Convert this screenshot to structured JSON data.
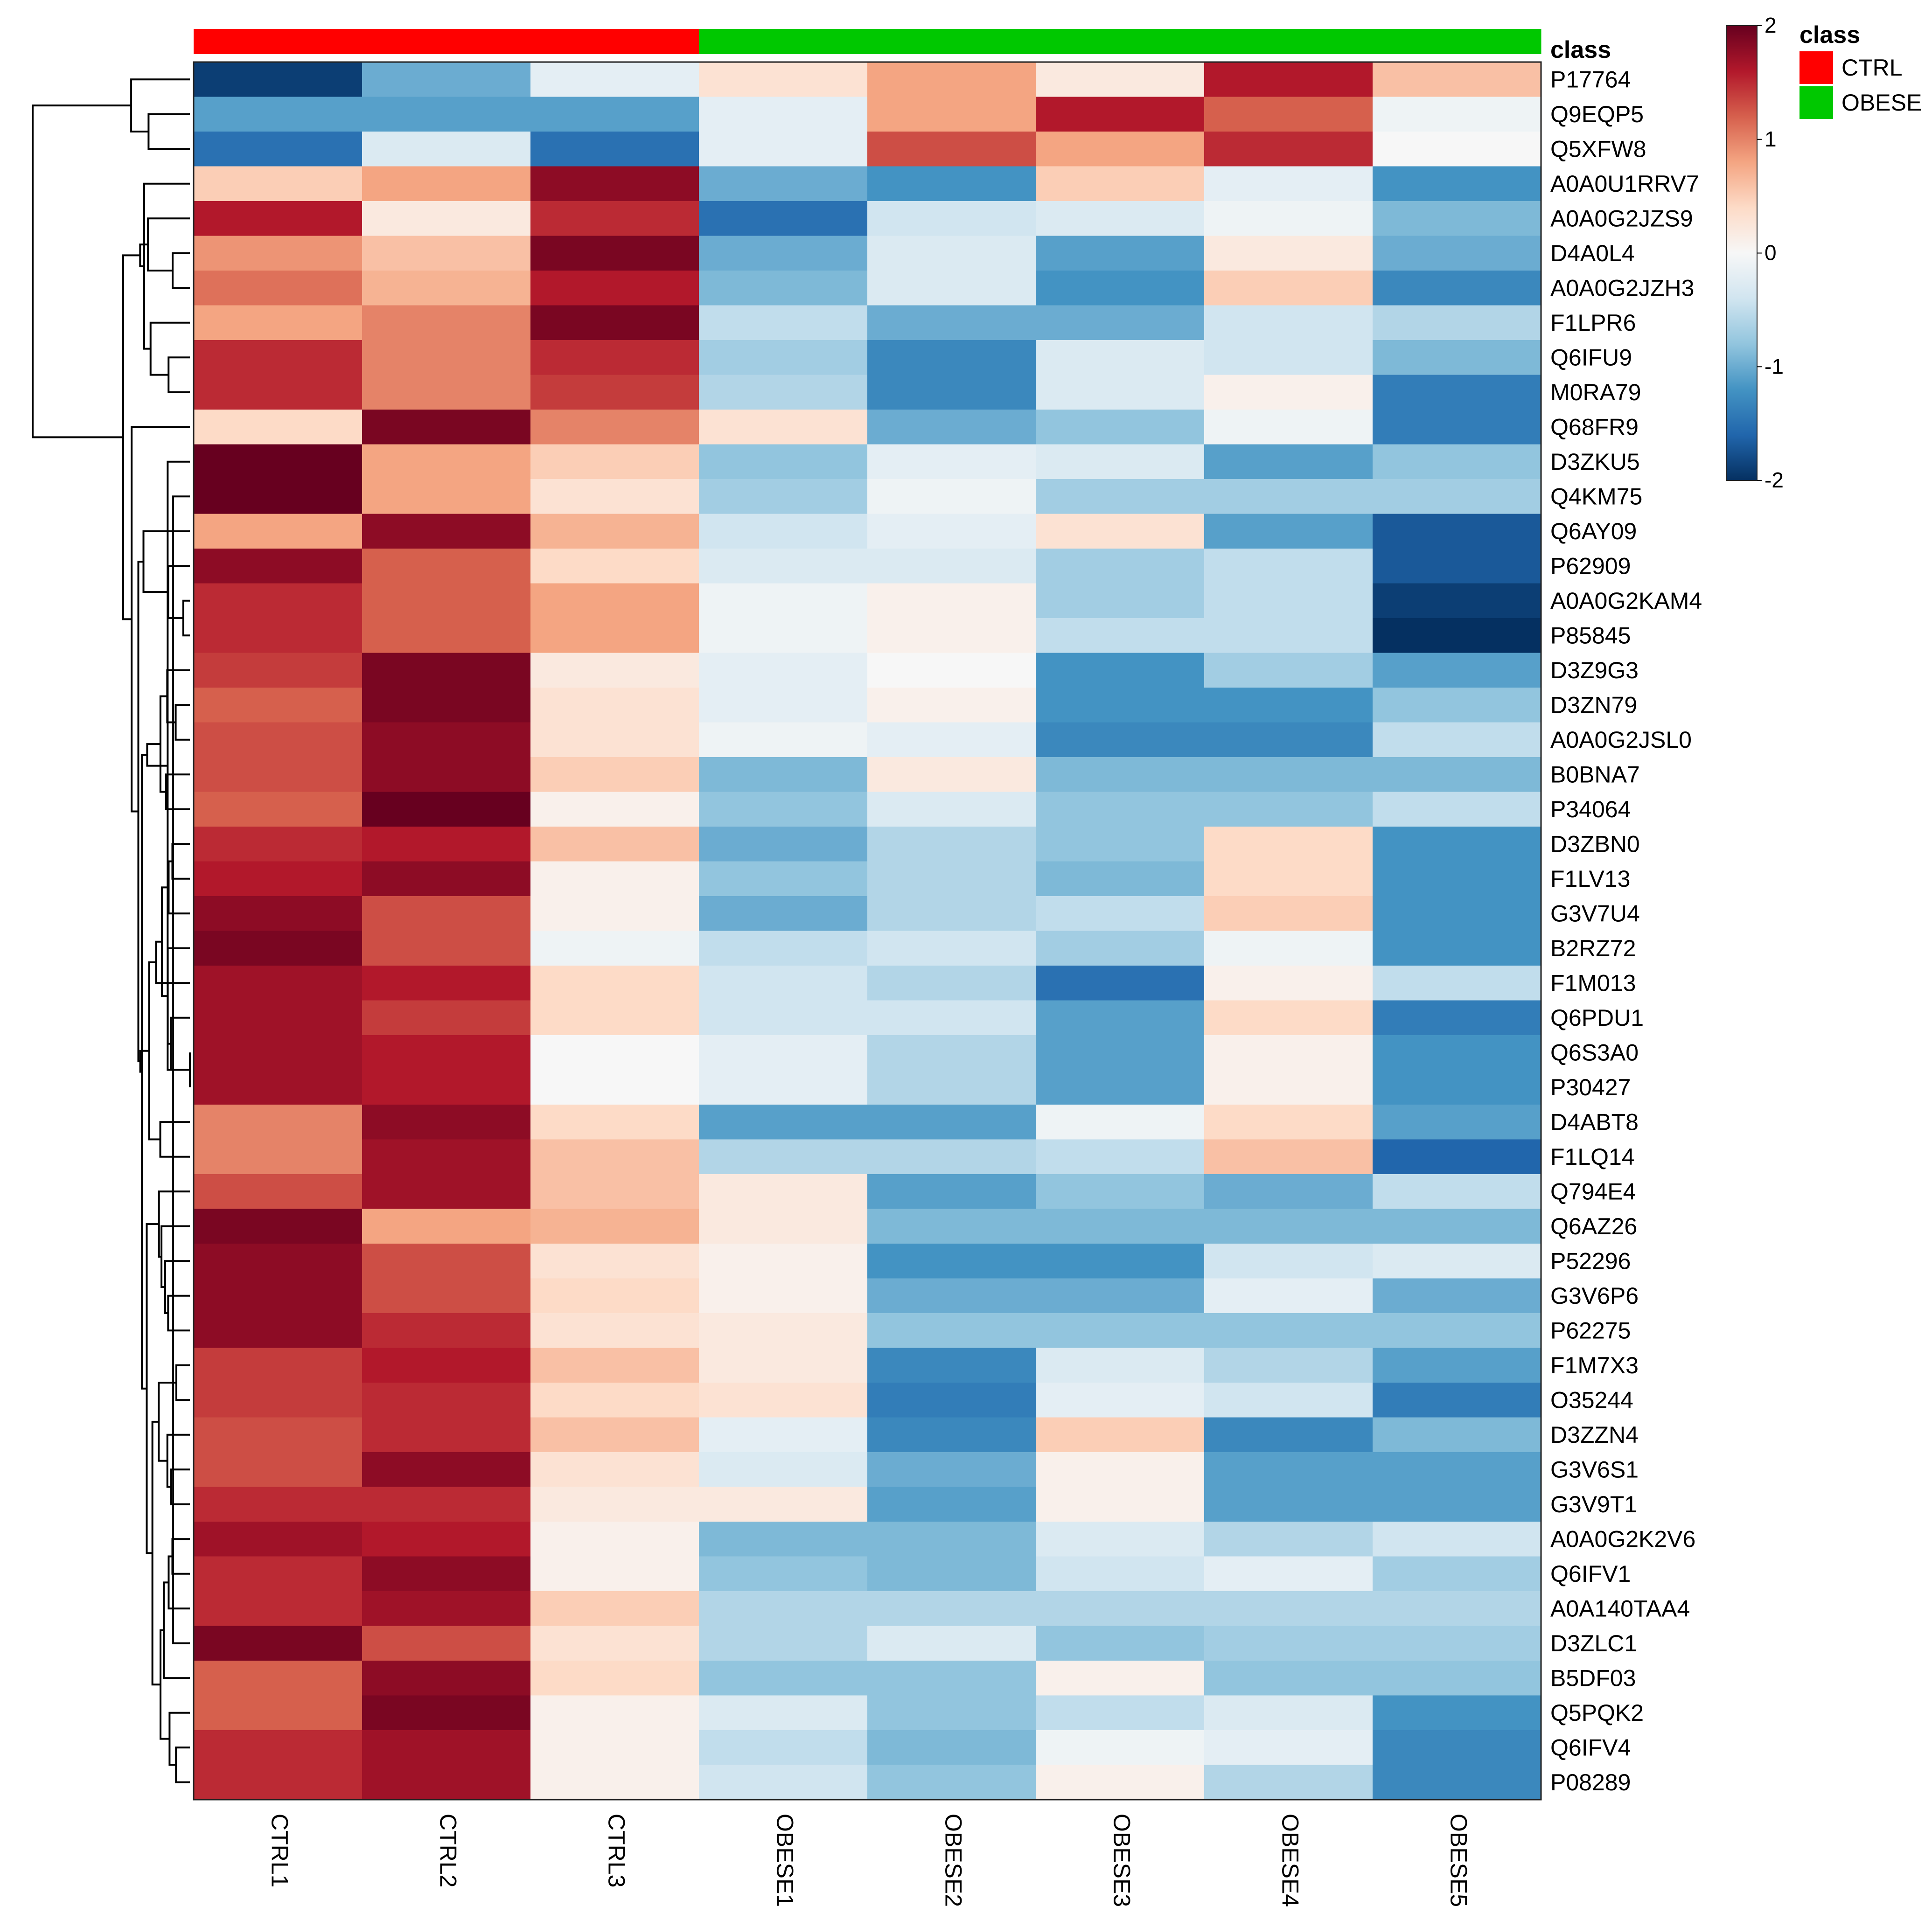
{
  "chart_data": {
    "type": "heatmap",
    "title": "",
    "columns": [
      "CTRL1",
      "CTRL2",
      "CTRL3",
      "OBESE1",
      "OBESE2",
      "OBESE3",
      "OBESE4",
      "OBESE5"
    ],
    "column_classes": [
      "CTRL",
      "CTRL",
      "CTRL",
      "OBESE",
      "OBESE",
      "OBESE",
      "OBESE",
      "OBESE"
    ],
    "annotation_label": "class",
    "legend": {
      "title": "class",
      "entries": [
        {
          "label": "CTRL",
          "color": "#ff0000"
        },
        {
          "label": "OBESE",
          "color": "#00c800"
        }
      ]
    },
    "color_scale": {
      "min": -2,
      "max": 2,
      "ticks": [
        "2",
        "1",
        "0",
        "-1",
        "-2"
      ],
      "stops": [
        "#053061",
        "#2166ac",
        "#4393c3",
        "#92c5de",
        "#d1e5f0",
        "#f7f7f7",
        "#fddbc7",
        "#f4a582",
        "#d6604d",
        "#b2182b",
        "#67001f"
      ]
    },
    "rows": [
      {
        "name": "P17764",
        "values": [
          -1.9,
          -1.0,
          -0.2,
          0.3,
          0.8,
          0.2,
          1.6,
          0.6
        ]
      },
      {
        "name": "Q9EQP5",
        "values": [
          -1.1,
          -1.1,
          -1.1,
          -0.2,
          0.8,
          1.6,
          1.2,
          -0.1
        ]
      },
      {
        "name": "Q5XFW8",
        "values": [
          -1.5,
          -0.3,
          -1.5,
          -0.2,
          1.3,
          0.8,
          1.5,
          0.0
        ]
      },
      {
        "name": "A0A0U1RRV7",
        "values": [
          0.5,
          0.8,
          1.8,
          -1.0,
          -1.2,
          0.5,
          -0.2,
          -1.2
        ]
      },
      {
        "name": "A0A0G2JZS9",
        "values": [
          1.6,
          0.2,
          1.5,
          -1.5,
          -0.4,
          -0.3,
          -0.1,
          -0.9
        ]
      },
      {
        "name": "D4A0L4",
        "values": [
          0.9,
          0.6,
          1.9,
          -1.0,
          -0.3,
          -1.1,
          0.2,
          -1.0
        ]
      },
      {
        "name": "A0A0G2JZH3",
        "values": [
          1.1,
          0.7,
          1.6,
          -0.9,
          -0.3,
          -1.2,
          0.5,
          -1.3
        ]
      },
      {
        "name": "F1LPR6",
        "values": [
          0.8,
          1.0,
          1.9,
          -0.5,
          -1.0,
          -1.0,
          -0.4,
          -0.6
        ]
      },
      {
        "name": "Q6IFU9",
        "values": [
          1.5,
          1.0,
          1.5,
          -0.7,
          -1.3,
          -0.3,
          -0.4,
          -0.9
        ]
      },
      {
        "name": "M0RA79",
        "values": [
          1.5,
          1.0,
          1.4,
          -0.6,
          -1.3,
          -0.3,
          0.1,
          -1.4
        ]
      },
      {
        "name": "Q68FR9",
        "values": [
          0.4,
          1.9,
          1.0,
          0.3,
          -1.0,
          -0.8,
          -0.1,
          -1.4
        ]
      },
      {
        "name": "D3ZKU5",
        "values": [
          2.0,
          0.8,
          0.5,
          -0.8,
          -0.2,
          -0.3,
          -1.1,
          -0.8
        ]
      },
      {
        "name": "Q4KM75",
        "values": [
          2.0,
          0.8,
          0.3,
          -0.7,
          -0.1,
          -0.7,
          -0.7,
          -0.7
        ]
      },
      {
        "name": "Q6AY09",
        "values": [
          0.8,
          1.8,
          0.7,
          -0.4,
          -0.2,
          0.3,
          -1.1,
          -1.7
        ]
      },
      {
        "name": "P62909",
        "values": [
          1.8,
          1.2,
          0.4,
          -0.3,
          -0.3,
          -0.7,
          -0.5,
          -1.7
        ]
      },
      {
        "name": "A0A0G2KAM4",
        "values": [
          1.5,
          1.2,
          0.8,
          -0.1,
          0.1,
          -0.7,
          -0.5,
          -1.9
        ]
      },
      {
        "name": "P85845",
        "values": [
          1.5,
          1.2,
          0.8,
          -0.1,
          0.1,
          -0.5,
          -0.5,
          -2.0
        ]
      },
      {
        "name": "D3Z9G3",
        "values": [
          1.4,
          1.9,
          0.2,
          -0.2,
          0.0,
          -1.2,
          -0.7,
          -1.1
        ]
      },
      {
        "name": "D3ZN79",
        "values": [
          1.2,
          1.9,
          0.3,
          -0.2,
          0.1,
          -1.2,
          -1.2,
          -0.8
        ]
      },
      {
        "name": "A0A0G2JSL0",
        "values": [
          1.3,
          1.8,
          0.3,
          -0.1,
          -0.2,
          -1.3,
          -1.3,
          -0.5
        ]
      },
      {
        "name": "B0BNA7",
        "values": [
          1.3,
          1.8,
          0.5,
          -0.9,
          0.2,
          -0.9,
          -0.9,
          -0.9
        ]
      },
      {
        "name": "P34064",
        "values": [
          1.2,
          2.0,
          0.1,
          -0.8,
          -0.3,
          -0.8,
          -0.8,
          -0.5
        ]
      },
      {
        "name": "D3ZBN0",
        "values": [
          1.5,
          1.6,
          0.6,
          -1.0,
          -0.6,
          -0.8,
          0.4,
          -1.2
        ]
      },
      {
        "name": "F1LV13",
        "values": [
          1.6,
          1.8,
          0.1,
          -0.8,
          -0.6,
          -0.9,
          0.4,
          -1.2
        ]
      },
      {
        "name": "G3V7U4",
        "values": [
          1.8,
          1.3,
          0.1,
          -1.0,
          -0.6,
          -0.5,
          0.5,
          -1.2
        ]
      },
      {
        "name": "B2RZ72",
        "values": [
          1.9,
          1.3,
          -0.1,
          -0.5,
          -0.4,
          -0.7,
          -0.1,
          -1.2
        ]
      },
      {
        "name": "F1M013",
        "values": [
          1.7,
          1.6,
          0.4,
          -0.4,
          -0.6,
          -1.5,
          0.1,
          -0.5
        ]
      },
      {
        "name": "Q6PDU1",
        "values": [
          1.7,
          1.4,
          0.4,
          -0.4,
          -0.4,
          -1.1,
          0.4,
          -1.4
        ]
      },
      {
        "name": "Q6S3A0",
        "values": [
          1.7,
          1.6,
          0.0,
          -0.2,
          -0.6,
          -1.1,
          0.1,
          -1.2
        ]
      },
      {
        "name": "P30427",
        "values": [
          1.7,
          1.6,
          0.0,
          -0.2,
          -0.6,
          -1.1,
          0.1,
          -1.2
        ]
      },
      {
        "name": "D4ABT8",
        "values": [
          1.0,
          1.8,
          0.4,
          -1.1,
          -1.1,
          -0.1,
          0.4,
          -1.1
        ]
      },
      {
        "name": "F1LQ14",
        "values": [
          1.0,
          1.7,
          0.6,
          -0.6,
          -0.6,
          -0.5,
          0.6,
          -1.6
        ]
      },
      {
        "name": "Q794E4",
        "values": [
          1.3,
          1.7,
          0.6,
          0.2,
          -1.1,
          -0.8,
          -1.0,
          -0.5
        ]
      },
      {
        "name": "Q6AZ26",
        "values": [
          1.9,
          0.8,
          0.7,
          0.2,
          -0.9,
          -0.9,
          -0.9,
          -0.9
        ]
      },
      {
        "name": "P52296",
        "values": [
          1.8,
          1.3,
          0.3,
          0.1,
          -1.2,
          -1.2,
          -0.4,
          -0.3
        ]
      },
      {
        "name": "G3V6P6",
        "values": [
          1.8,
          1.3,
          0.4,
          0.1,
          -1.0,
          -1.0,
          -0.2,
          -1.0
        ]
      },
      {
        "name": "P62275",
        "values": [
          1.8,
          1.5,
          0.3,
          0.2,
          -0.8,
          -0.8,
          -0.8,
          -0.8
        ]
      },
      {
        "name": "F1M7X3",
        "values": [
          1.4,
          1.6,
          0.6,
          0.2,
          -1.3,
          -0.3,
          -0.6,
          -1.1
        ]
      },
      {
        "name": "O35244",
        "values": [
          1.4,
          1.5,
          0.4,
          0.3,
          -1.4,
          -0.2,
          -0.4,
          -1.4
        ]
      },
      {
        "name": "D3ZZN4",
        "values": [
          1.3,
          1.5,
          0.6,
          -0.2,
          -1.3,
          0.5,
          -1.3,
          -0.9
        ]
      },
      {
        "name": "G3V6S1",
        "values": [
          1.3,
          1.8,
          0.3,
          -0.3,
          -1.0,
          0.1,
          -1.1,
          -1.1
        ]
      },
      {
        "name": "G3V9T1",
        "values": [
          1.5,
          1.5,
          0.2,
          0.2,
          -1.1,
          0.1,
          -1.1,
          -1.1
        ]
      },
      {
        "name": "A0A0G2K2V6",
        "values": [
          1.7,
          1.6,
          0.1,
          -0.9,
          -0.9,
          -0.3,
          -0.6,
          -0.4
        ]
      },
      {
        "name": "Q6IFV1",
        "values": [
          1.5,
          1.8,
          0.1,
          -0.8,
          -0.9,
          -0.4,
          -0.2,
          -0.7
        ]
      },
      {
        "name": "A0A140TAA4",
        "values": [
          1.5,
          1.7,
          0.5,
          -0.6,
          -0.6,
          -0.6,
          -0.6,
          -0.6
        ]
      },
      {
        "name": "D3ZLC1",
        "values": [
          1.9,
          1.3,
          0.3,
          -0.6,
          -0.3,
          -0.8,
          -0.7,
          -0.7
        ]
      },
      {
        "name": "B5DF03",
        "values": [
          1.2,
          1.8,
          0.4,
          -0.8,
          -0.8,
          0.1,
          -0.8,
          -0.8
        ]
      },
      {
        "name": "Q5PQK2",
        "values": [
          1.2,
          1.9,
          0.1,
          -0.3,
          -0.8,
          -0.5,
          -0.3,
          -1.2
        ]
      },
      {
        "name": "Q6IFV4",
        "values": [
          1.5,
          1.7,
          0.1,
          -0.5,
          -0.9,
          -0.1,
          -0.2,
          -1.3
        ]
      },
      {
        "name": "P08289",
        "values": [
          1.5,
          1.7,
          0.1,
          -0.4,
          -0.8,
          0.1,
          -0.6,
          -1.3
        ]
      }
    ]
  }
}
